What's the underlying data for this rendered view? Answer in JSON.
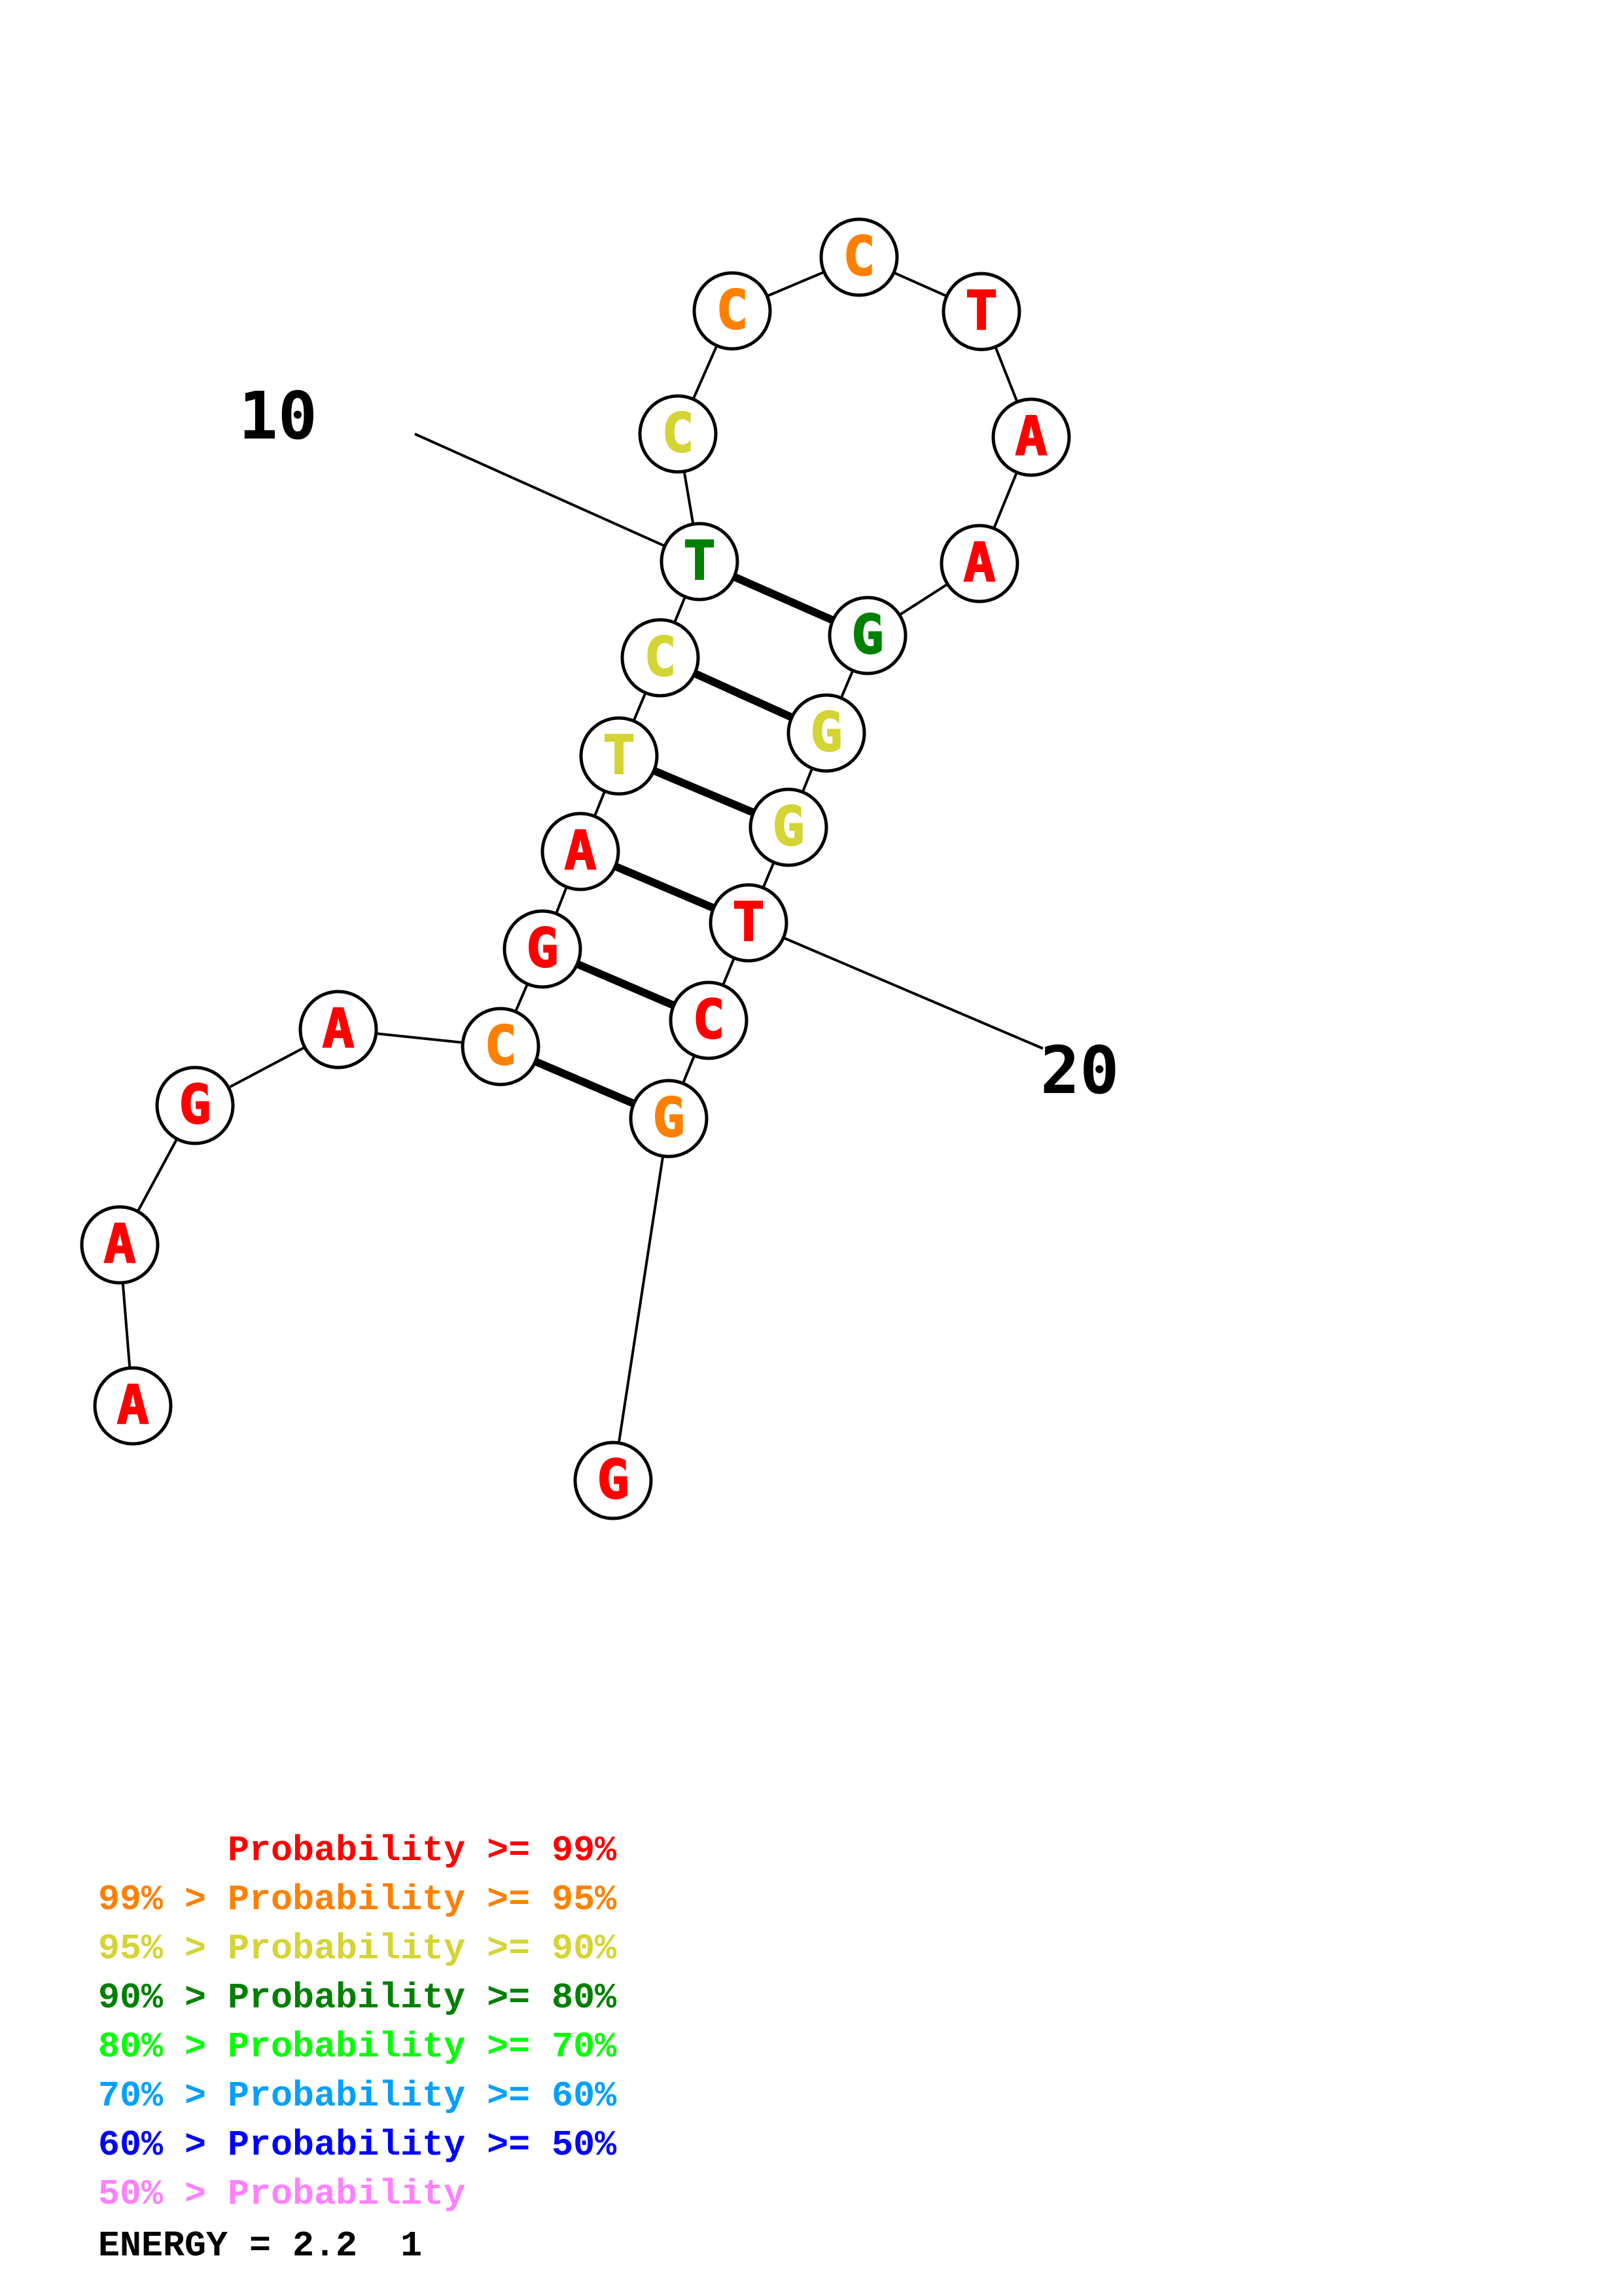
{
  "diagram": {
    "nucleotides": [
      {
        "base": "A",
        "color": "#ff0000"
      },
      {
        "base": "A",
        "color": "#ff0000"
      },
      {
        "base": "G",
        "color": "#ff0000"
      },
      {
        "base": "A",
        "color": "#ff0000"
      },
      {
        "base": "C",
        "color": "#ff8000"
      },
      {
        "base": "G",
        "color": "#ff0000"
      },
      {
        "base": "A",
        "color": "#ff0000"
      },
      {
        "base": "T",
        "color": "#d4d435"
      },
      {
        "base": "C",
        "color": "#d4d435"
      },
      {
        "base": "T",
        "color": "#008000"
      },
      {
        "base": "C",
        "color": "#d4d435"
      },
      {
        "base": "C",
        "color": "#ff8000"
      },
      {
        "base": "C",
        "color": "#ff8000"
      },
      {
        "base": "T",
        "color": "#ff0000"
      },
      {
        "base": "A",
        "color": "#ff0000"
      },
      {
        "base": "A",
        "color": "#ff0000"
      },
      {
        "base": "G",
        "color": "#008000"
      },
      {
        "base": "G",
        "color": "#d4d435"
      },
      {
        "base": "G",
        "color": "#d4d435"
      },
      {
        "base": "T",
        "color": "#ff0000"
      },
      {
        "base": "C",
        "color": "#ff0000"
      },
      {
        "base": "G",
        "color": "#ff8000"
      },
      {
        "base": "G",
        "color": "#ff0000"
      }
    ],
    "base_pairs": [
      [
        5,
        22
      ],
      [
        6,
        21
      ],
      [
        7,
        20
      ],
      [
        8,
        19
      ],
      [
        9,
        18
      ],
      [
        10,
        17
      ]
    ],
    "position_labels": [
      {
        "text": "10",
        "nucleotide": 10
      },
      {
        "text": "20",
        "nucleotide": 20
      }
    ]
  },
  "legend": [
    {
      "text": "      Probability >= 99%",
      "color": "#ff0000"
    },
    {
      "text": "99% > Probability >= 95%",
      "color": "#ff8000"
    },
    {
      "text": "95% > Probability >= 90%",
      "color": "#d4d435"
    },
    {
      "text": "90% > Probability >= 80%",
      "color": "#008000"
    },
    {
      "text": "80% > Probability >= 70%",
      "color": "#00ff00"
    },
    {
      "text": "70% > Probability >= 60%",
      "color": "#00a0ff"
    },
    {
      "text": "60% > Probability >= 50%",
      "color": "#0000ff"
    },
    {
      "text": "50% > Probability",
      "color": "#ff80ff"
    }
  ],
  "energy_text": "ENERGY = 2.2  1"
}
